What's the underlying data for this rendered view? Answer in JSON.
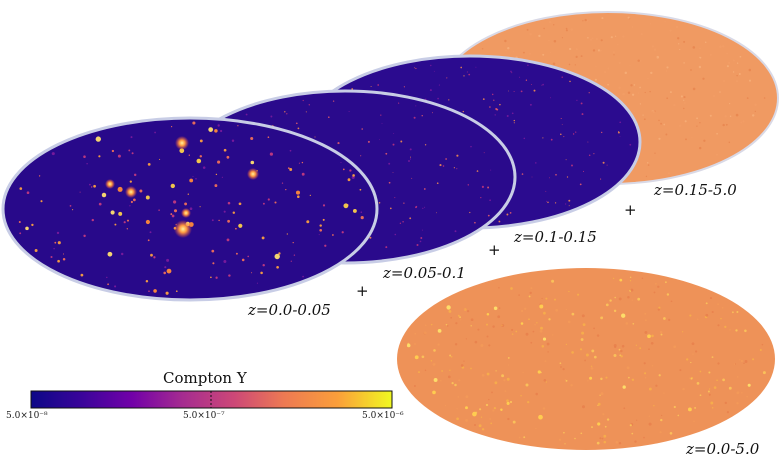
{
  "shells": [
    {
      "label": "z=0.15-5.0"
    },
    {
      "label": "z=0.1-0.15"
    },
    {
      "label": "z=0.05-0.1"
    },
    {
      "label": "z=0.0-0.05"
    }
  ],
  "total": {
    "label": "z=0.0-5.0"
  },
  "plus_sign": "+",
  "colorbar": {
    "title": "Compton Y",
    "ticks": [
      "5.0×10⁻⁸",
      "5.0×10⁻⁷",
      "5.0×10⁻⁶"
    ],
    "colormap": [
      "#0d0887",
      "#3a049a",
      "#7201a8",
      "#a52c90",
      "#cc4778",
      "#ed7953",
      "#fb9f3a",
      "#f0f921"
    ]
  },
  "colors": {
    "low": "#2a0a8c",
    "high": "#f0945a"
  }
}
